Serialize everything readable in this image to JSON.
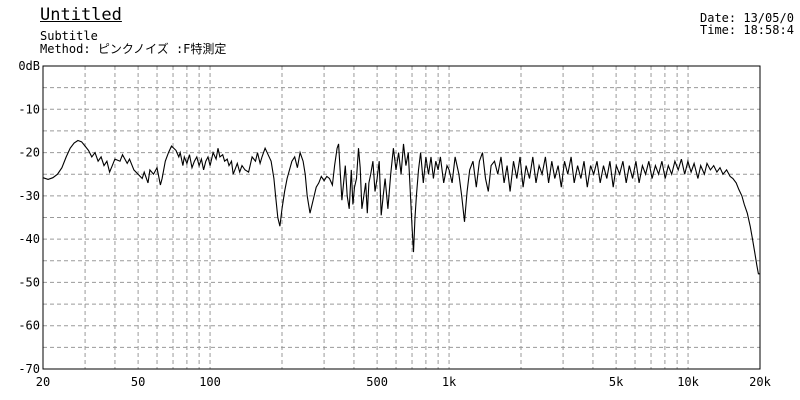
{
  "header": {
    "title": "Untitled",
    "subtitle": "Subtitle",
    "method_label": "Method:",
    "method_value": "ピンクノイズ  :F特測定",
    "date_label": "Date:",
    "date_value": "13/05/0",
    "time_label": "Time:",
    "time_value": "18:58:4"
  },
  "chart_data": {
    "type": "line",
    "title": "Untitled",
    "subtitle": "Subtitle",
    "xlabel": "",
    "ylabel": "",
    "x_scale": "log",
    "xlim": [
      20,
      20000
    ],
    "ylim": [
      -70,
      0
    ],
    "grid": true,
    "x_tick_labels": [
      {
        "value": 20,
        "label": "20"
      },
      {
        "value": 50,
        "label": "50"
      },
      {
        "value": 100,
        "label": "100"
      },
      {
        "value": 500,
        "label": "500"
      },
      {
        "value": 1000,
        "label": "1k"
      },
      {
        "value": 5000,
        "label": "5k"
      },
      {
        "value": 10000,
        "label": "10k"
      },
      {
        "value": 20000,
        "label": "20k"
      }
    ],
    "y_tick_labels": [
      {
        "value": 0,
        "label": "0dB"
      },
      {
        "value": -10,
        "label": "-10"
      },
      {
        "value": -20,
        "label": "-20"
      },
      {
        "value": -30,
        "label": "-30"
      },
      {
        "value": -40,
        "label": "-40"
      },
      {
        "value": -50,
        "label": "-50"
      },
      {
        "value": -60,
        "label": "-60"
      },
      {
        "value": -70,
        "label": "-70"
      }
    ],
    "series": [
      {
        "values": [
          [
            20,
            -25.8
          ],
          [
            21,
            -26.2
          ],
          [
            22,
            -25.8
          ],
          [
            23,
            -25.0
          ],
          [
            24,
            -23.5
          ],
          [
            25,
            -21.0
          ],
          [
            26,
            -19.0
          ],
          [
            27,
            -17.8
          ],
          [
            28,
            -17.2
          ],
          [
            29,
            -17.5
          ],
          [
            30,
            -18.5
          ],
          [
            31,
            -19.5
          ],
          [
            32,
            -21.0
          ],
          [
            33,
            -20.0
          ],
          [
            34,
            -22.0
          ],
          [
            35,
            -21.0
          ],
          [
            36,
            -23.0
          ],
          [
            37,
            -22.0
          ],
          [
            38,
            -24.5
          ],
          [
            39,
            -23.0
          ],
          [
            40,
            -21.5
          ],
          [
            42,
            -22.0
          ],
          [
            43,
            -20.5
          ],
          [
            45,
            -22.5
          ],
          [
            46,
            -21.5
          ],
          [
            48,
            -24.0
          ],
          [
            50,
            -25.0
          ],
          [
            52,
            -26.0
          ],
          [
            53,
            -24.5
          ],
          [
            55,
            -27.0
          ],
          [
            56,
            -24.0
          ],
          [
            58,
            -25.0
          ],
          [
            60,
            -23.5
          ],
          [
            62,
            -27.5
          ],
          [
            63,
            -26.0
          ],
          [
            65,
            -22.0
          ],
          [
            67,
            -20.0
          ],
          [
            69,
            -18.5
          ],
          [
            72,
            -19.5
          ],
          [
            74,
            -21.0
          ],
          [
            75,
            -20.0
          ],
          [
            77,
            -23.0
          ],
          [
            78,
            -21.0
          ],
          [
            80,
            -22.5
          ],
          [
            82,
            -20.5
          ],
          [
            84,
            -23.5
          ],
          [
            86,
            -22.0
          ],
          [
            88,
            -21.0
          ],
          [
            90,
            -23.0
          ],
          [
            92,
            -21.5
          ],
          [
            94,
            -24.0
          ],
          [
            96,
            -22.0
          ],
          [
            98,
            -21.0
          ],
          [
            100,
            -23.0
          ],
          [
            103,
            -20.0
          ],
          [
            106,
            -21.5
          ],
          [
            108,
            -19.0
          ],
          [
            110,
            -21.0
          ],
          [
            113,
            -20.5
          ],
          [
            115,
            -22.0
          ],
          [
            118,
            -21.5
          ],
          [
            120,
            -23.0
          ],
          [
            123,
            -22.0
          ],
          [
            125,
            -25.0
          ],
          [
            128,
            -23.5
          ],
          [
            130,
            -22.5
          ],
          [
            133,
            -24.5
          ],
          [
            136,
            -23.0
          ],
          [
            140,
            -24.0
          ],
          [
            145,
            -24.5
          ],
          [
            150,
            -21.0
          ],
          [
            155,
            -22.0
          ],
          [
            158,
            -20.0
          ],
          [
            162,
            -22.5
          ],
          [
            165,
            -21.0
          ],
          [
            170,
            -19.0
          ],
          [
            175,
            -20.5
          ],
          [
            180,
            -22.0
          ],
          [
            185,
            -26.0
          ],
          [
            188,
            -30.0
          ],
          [
            192,
            -35.0
          ],
          [
            196,
            -37.0
          ],
          [
            200,
            -33.0
          ],
          [
            205,
            -29.0
          ],
          [
            210,
            -26.0
          ],
          [
            215,
            -24.0
          ],
          [
            220,
            -22.0
          ],
          [
            226,
            -21.0
          ],
          [
            232,
            -23.5
          ],
          [
            238,
            -20.0
          ],
          [
            245,
            -22.0
          ],
          [
            250,
            -25.0
          ],
          [
            255,
            -30.0
          ],
          [
            262,
            -34.0
          ],
          [
            270,
            -31.0
          ],
          [
            278,
            -28.0
          ],
          [
            285,
            -27.0
          ],
          [
            292,
            -25.5
          ],
          [
            300,
            -26.5
          ],
          [
            308,
            -25.5
          ],
          [
            316,
            -26.0
          ],
          [
            325,
            -27.5
          ],
          [
            332,
            -23.0
          ],
          [
            340,
            -19.0
          ],
          [
            345,
            -18.0
          ],
          [
            350,
            -24.0
          ],
          [
            356,
            -31.0
          ],
          [
            362,
            -27.0
          ],
          [
            368,
            -23.0
          ],
          [
            375,
            -30.0
          ],
          [
            382,
            -33.0
          ],
          [
            390,
            -24.0
          ],
          [
            396,
            -32.0
          ],
          [
            402,
            -28.0
          ],
          [
            410,
            -26.0
          ],
          [
            418,
            -19.0
          ],
          [
            425,
            -23.5
          ],
          [
            432,
            -33.0
          ],
          [
            440,
            -30.0
          ],
          [
            448,
            -27.0
          ],
          [
            455,
            -34.0
          ],
          [
            462,
            -27.0
          ],
          [
            470,
            -25.0
          ],
          [
            480,
            -22.0
          ],
          [
            490,
            -29.0
          ],
          [
            500,
            -26.0
          ],
          [
            510,
            -22.0
          ],
          [
            520,
            -34.5
          ],
          [
            530,
            -30.0
          ],
          [
            540,
            -26.0
          ],
          [
            555,
            -33.0
          ],
          [
            570,
            -25.0
          ],
          [
            585,
            -19.0
          ],
          [
            600,
            -24.0
          ],
          [
            615,
            -20.0
          ],
          [
            630,
            -25.0
          ],
          [
            645,
            -18.0
          ],
          [
            660,
            -23.0
          ],
          [
            675,
            -20.0
          ],
          [
            690,
            -30.0
          ],
          [
            700,
            -37.0
          ],
          [
            710,
            -43.0
          ],
          [
            720,
            -35.0
          ],
          [
            730,
            -30.0
          ],
          [
            745,
            -24.0
          ],
          [
            760,
            -20.0
          ],
          [
            780,
            -27.0
          ],
          [
            800,
            -21.0
          ],
          [
            820,
            -25.0
          ],
          [
            840,
            -21.0
          ],
          [
            860,
            -26.0
          ],
          [
            880,
            -22.0
          ],
          [
            900,
            -24.0
          ],
          [
            920,
            -21.0
          ],
          [
            950,
            -27.0
          ],
          [
            980,
            -23.0
          ],
          [
            1000,
            -24.0
          ],
          [
            1030,
            -27.0
          ],
          [
            1060,
            -21.0
          ],
          [
            1100,
            -25.0
          ],
          [
            1130,
            -30.0
          ],
          [
            1160,
            -36.0
          ],
          [
            1190,
            -29.0
          ],
          [
            1220,
            -24.0
          ],
          [
            1260,
            -22.0
          ],
          [
            1300,
            -28.0
          ],
          [
            1340,
            -22.0
          ],
          [
            1380,
            -20.0
          ],
          [
            1420,
            -26.0
          ],
          [
            1460,
            -29.0
          ],
          [
            1500,
            -23.0
          ],
          [
            1550,
            -22.0
          ],
          [
            1600,
            -25.0
          ],
          [
            1650,
            -21.0
          ],
          [
            1700,
            -27.0
          ],
          [
            1750,
            -23.0
          ],
          [
            1800,
            -29.0
          ],
          [
            1860,
            -22.0
          ],
          [
            1920,
            -26.0
          ],
          [
            1980,
            -21.0
          ],
          [
            2040,
            -28.0
          ],
          [
            2100,
            -23.0
          ],
          [
            2170,
            -26.0
          ],
          [
            2240,
            -21.0
          ],
          [
            2310,
            -27.0
          ],
          [
            2380,
            -23.0
          ],
          [
            2450,
            -25.0
          ],
          [
            2530,
            -21.0
          ],
          [
            2610,
            -27.0
          ],
          [
            2690,
            -22.0
          ],
          [
            2770,
            -26.0
          ],
          [
            2860,
            -23.0
          ],
          [
            2950,
            -28.0
          ],
          [
            3040,
            -22.0
          ],
          [
            3140,
            -25.0
          ],
          [
            3240,
            -21.0
          ],
          [
            3340,
            -27.0
          ],
          [
            3450,
            -23.0
          ],
          [
            3560,
            -26.0
          ],
          [
            3670,
            -22.0
          ],
          [
            3790,
            -28.0
          ],
          [
            3910,
            -23.0
          ],
          [
            4030,
            -25.0
          ],
          [
            4160,
            -22.0
          ],
          [
            4290,
            -27.0
          ],
          [
            4430,
            -23.0
          ],
          [
            4570,
            -26.0
          ],
          [
            4710,
            -22.0
          ],
          [
            4860,
            -28.0
          ],
          [
            5010,
            -23.0
          ],
          [
            5170,
            -25.0
          ],
          [
            5340,
            -22.0
          ],
          [
            5510,
            -27.0
          ],
          [
            5680,
            -23.0
          ],
          [
            5860,
            -26.0
          ],
          [
            6050,
            -22.0
          ],
          [
            6240,
            -27.0
          ],
          [
            6440,
            -23.0
          ],
          [
            6640,
            -25.0
          ],
          [
            6850,
            -22.0
          ],
          [
            7070,
            -26.0
          ],
          [
            7300,
            -23.0
          ],
          [
            7530,
            -25.0
          ],
          [
            7770,
            -22.0
          ],
          [
            8020,
            -26.0
          ],
          [
            8270,
            -23.0
          ],
          [
            8540,
            -25.0
          ],
          [
            8810,
            -22.0
          ],
          [
            9090,
            -24.0
          ],
          [
            9380,
            -21.5
          ],
          [
            9680,
            -25.0
          ],
          [
            9990,
            -22.0
          ],
          [
            10300,
            -24.5
          ],
          [
            10600,
            -22.5
          ],
          [
            11000,
            -26.0
          ],
          [
            11300,
            -23.0
          ],
          [
            11700,
            -25.0
          ],
          [
            12000,
            -22.5
          ],
          [
            12400,
            -24.0
          ],
          [
            12800,
            -23.0
          ],
          [
            13200,
            -24.5
          ],
          [
            13600,
            -23.5
          ],
          [
            14000,
            -25.0
          ],
          [
            14500,
            -24.0
          ],
          [
            15000,
            -25.5
          ],
          [
            15400,
            -26.0
          ],
          [
            15900,
            -27.0
          ],
          [
            16300,
            -28.5
          ],
          [
            16800,
            -30.0
          ],
          [
            17200,
            -32.0
          ],
          [
            17700,
            -34.0
          ],
          [
            18200,
            -37.0
          ],
          [
            18600,
            -40.0
          ],
          [
            19000,
            -43.0
          ],
          [
            19400,
            -46.0
          ],
          [
            19700,
            -48.0
          ],
          [
            20000,
            -48.0
          ]
        ]
      }
    ]
  }
}
